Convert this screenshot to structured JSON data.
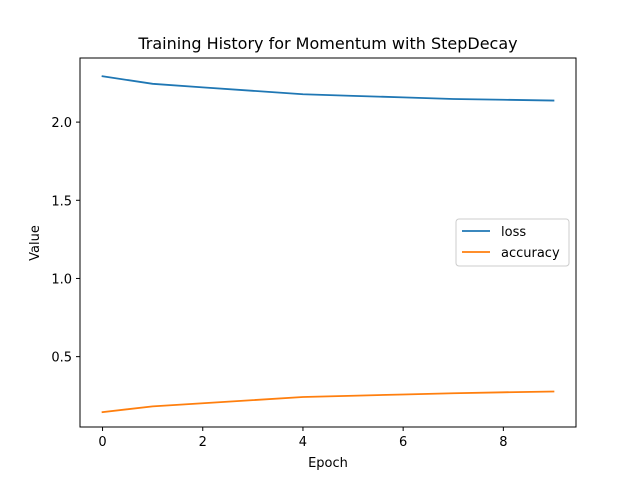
{
  "chart_data": {
    "type": "line",
    "title": "Training History for Momentum with StepDecay",
    "xlabel": "Epoch",
    "ylabel": "Value",
    "x": [
      0,
      1,
      2,
      3,
      4,
      5,
      6,
      7,
      8,
      9
    ],
    "xticks": [
      0,
      2,
      4,
      6,
      8
    ],
    "yticks": [
      0.5,
      1.0,
      1.5,
      2.0
    ],
    "ytick_labels": [
      "0.5",
      "1.0",
      "1.5",
      "2.0"
    ],
    "xlim": [
      -0.45,
      9.45
    ],
    "ylim": [
      0.05,
      2.41
    ],
    "grid": false,
    "legend_position": "center-right",
    "series": [
      {
        "name": "loss",
        "color": "#1f77b4",
        "values": [
          2.293,
          2.245,
          2.222,
          2.2,
          2.178,
          2.168,
          2.158,
          2.148,
          2.143,
          2.138
        ]
      },
      {
        "name": "accuracy",
        "color": "#ff7f0e",
        "values": [
          0.145,
          0.182,
          0.202,
          0.222,
          0.242,
          0.25,
          0.258,
          0.266,
          0.272,
          0.277
        ]
      }
    ]
  }
}
